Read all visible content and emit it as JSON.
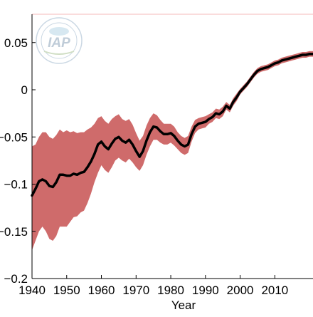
{
  "chart_data": {
    "type": "area",
    "xlabel": "Year",
    "ylabel": "",
    "title": "",
    "xlim": [
      1940,
      2021
    ],
    "ylim": [
      -0.2,
      0.08
    ],
    "xticks": [
      1940,
      1950,
      1960,
      1970,
      1980,
      1990,
      2000,
      2010
    ],
    "xtick_labels": [
      "1940",
      "1950",
      "1960",
      "1970",
      "1980",
      "1990",
      "2000",
      "2010"
    ],
    "yticks": [
      -0.2,
      -0.15,
      -0.1,
      -0.05,
      0,
      0.05
    ],
    "ytick_labels": [
      "−0.2",
      "−0.15",
      "−0.1",
      "−0.05",
      "0",
      "0.05"
    ],
    "grid": false,
    "logo": "IAP",
    "colors": {
      "band": "#cf6b6b",
      "line": "#000000",
      "top_line": "#f4b8b8"
    },
    "series": [
      {
        "x": [
          1940,
          1941,
          1942,
          1943,
          1944,
          1945,
          1946,
          1947,
          1948,
          1949,
          1950,
          1951,
          1952,
          1953,
          1954,
          1955,
          1956,
          1957,
          1958,
          1959,
          1960,
          1961,
          1962,
          1963,
          1964,
          1965,
          1966,
          1967,
          1968,
          1969,
          1970,
          1971,
          1972,
          1973,
          1974,
          1975,
          1976,
          1977,
          1978,
          1979,
          1980,
          1981,
          1982,
          1983,
          1984,
          1985,
          1986,
          1987,
          1988,
          1989,
          1990,
          1991,
          1992,
          1993,
          1994,
          1995,
          1996,
          1997,
          1998,
          1999,
          2000,
          2001,
          2002,
          2003,
          2004,
          2005,
          2006,
          2007,
          2008,
          2009,
          2010,
          2011,
          2012,
          2013,
          2014,
          2015,
          2016,
          2017,
          2018,
          2019,
          2020,
          2021
        ],
        "values": [
          -0.112,
          -0.105,
          -0.097,
          -0.095,
          -0.097,
          -0.102,
          -0.103,
          -0.098,
          -0.09,
          -0.09,
          -0.091,
          -0.091,
          -0.089,
          -0.09,
          -0.088,
          -0.087,
          -0.082,
          -0.076,
          -0.068,
          -0.058,
          -0.055,
          -0.06,
          -0.063,
          -0.057,
          -0.052,
          -0.05,
          -0.054,
          -0.056,
          -0.053,
          -0.058,
          -0.065,
          -0.071,
          -0.065,
          -0.054,
          -0.045,
          -0.039,
          -0.04,
          -0.044,
          -0.047,
          -0.047,
          -0.046,
          -0.049,
          -0.054,
          -0.058,
          -0.06,
          -0.058,
          -0.047,
          -0.039,
          -0.036,
          -0.035,
          -0.034,
          -0.031,
          -0.029,
          -0.025,
          -0.026,
          -0.023,
          -0.017,
          -0.02,
          -0.013,
          -0.008,
          -0.002,
          0.002,
          0.006,
          0.011,
          0.016,
          0.02,
          0.022,
          0.023,
          0.024,
          0.026,
          0.028,
          0.029,
          0.031,
          0.032,
          0.033,
          0.034,
          0.035,
          0.036,
          0.037,
          0.037,
          0.038,
          0.038
        ],
        "lower": [
          -0.17,
          -0.16,
          -0.15,
          -0.145,
          -0.15,
          -0.158,
          -0.16,
          -0.155,
          -0.145,
          -0.145,
          -0.145,
          -0.14,
          -0.135,
          -0.134,
          -0.13,
          -0.128,
          -0.12,
          -0.11,
          -0.098,
          -0.088,
          -0.08,
          -0.085,
          -0.088,
          -0.082,
          -0.075,
          -0.072,
          -0.075,
          -0.077,
          -0.073,
          -0.077,
          -0.082,
          -0.086,
          -0.08,
          -0.069,
          -0.06,
          -0.053,
          -0.053,
          -0.056,
          -0.058,
          -0.058,
          -0.056,
          -0.059,
          -0.063,
          -0.067,
          -0.069,
          -0.067,
          -0.055,
          -0.046,
          -0.042,
          -0.041,
          -0.04,
          -0.036,
          -0.034,
          -0.03,
          -0.031,
          -0.028,
          -0.021,
          -0.024,
          -0.017,
          -0.012,
          -0.005,
          -0.001,
          0.003,
          0.008,
          0.013,
          0.017,
          0.019,
          0.02,
          0.021,
          0.023,
          0.025,
          0.026,
          0.028,
          0.029,
          0.03,
          0.031,
          0.032,
          0.033,
          0.034,
          0.034,
          0.035,
          0.035
        ],
        "upper": [
          -0.06,
          -0.058,
          -0.05,
          -0.045,
          -0.045,
          -0.05,
          -0.052,
          -0.048,
          -0.042,
          -0.045,
          -0.043,
          -0.045,
          -0.044,
          -0.046,
          -0.045,
          -0.045,
          -0.042,
          -0.04,
          -0.036,
          -0.03,
          -0.028,
          -0.033,
          -0.036,
          -0.031,
          -0.028,
          -0.026,
          -0.031,
          -0.033,
          -0.031,
          -0.037,
          -0.046,
          -0.054,
          -0.049,
          -0.038,
          -0.03,
          -0.025,
          -0.027,
          -0.032,
          -0.036,
          -0.036,
          -0.036,
          -0.039,
          -0.045,
          -0.049,
          -0.051,
          -0.049,
          -0.039,
          -0.032,
          -0.03,
          -0.029,
          -0.028,
          -0.026,
          -0.024,
          -0.02,
          -0.021,
          -0.018,
          -0.013,
          -0.016,
          -0.009,
          -0.004,
          0.001,
          0.005,
          0.009,
          0.014,
          0.019,
          0.023,
          0.025,
          0.026,
          0.027,
          0.029,
          0.031,
          0.032,
          0.034,
          0.035,
          0.036,
          0.037,
          0.038,
          0.039,
          0.04,
          0.04,
          0.041,
          0.041
        ]
      }
    ]
  }
}
